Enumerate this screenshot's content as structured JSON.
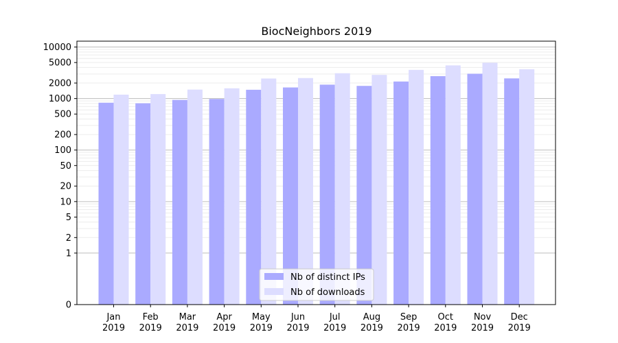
{
  "chart_data": {
    "type": "bar",
    "title": "BiocNeighbors 2019",
    "xlabel": "",
    "ylabel": "",
    "yscale": "symlog",
    "ylim": [
      0,
      13000
    ],
    "grid": "y-major-and-minor",
    "legend_position": "bottom-center",
    "categories": [
      "Jan\n2019",
      "Feb\n2019",
      "Mar\n2019",
      "Apr\n2019",
      "May\n2019",
      "Jun\n2019",
      "Jul\n2019",
      "Aug\n2019",
      "Sep\n2019",
      "Oct\n2019",
      "Nov\n2019",
      "Dec\n2019"
    ],
    "yticks": [
      0,
      1,
      2,
      5,
      10,
      20,
      50,
      100,
      200,
      500,
      1000,
      2000,
      5000,
      10000
    ],
    "series": [
      {
        "name": "Nb of distinct IPs",
        "color": "#aaaaff",
        "values": [
          830,
          810,
          940,
          980,
          1480,
          1640,
          1860,
          1760,
          2140,
          2720,
          3030,
          2460
        ]
      },
      {
        "name": "Nb of downloads",
        "color": "#ddddff",
        "values": [
          1190,
          1220,
          1490,
          1580,
          2450,
          2500,
          3100,
          2880,
          3600,
          4400,
          4950,
          3700
        ]
      }
    ]
  }
}
